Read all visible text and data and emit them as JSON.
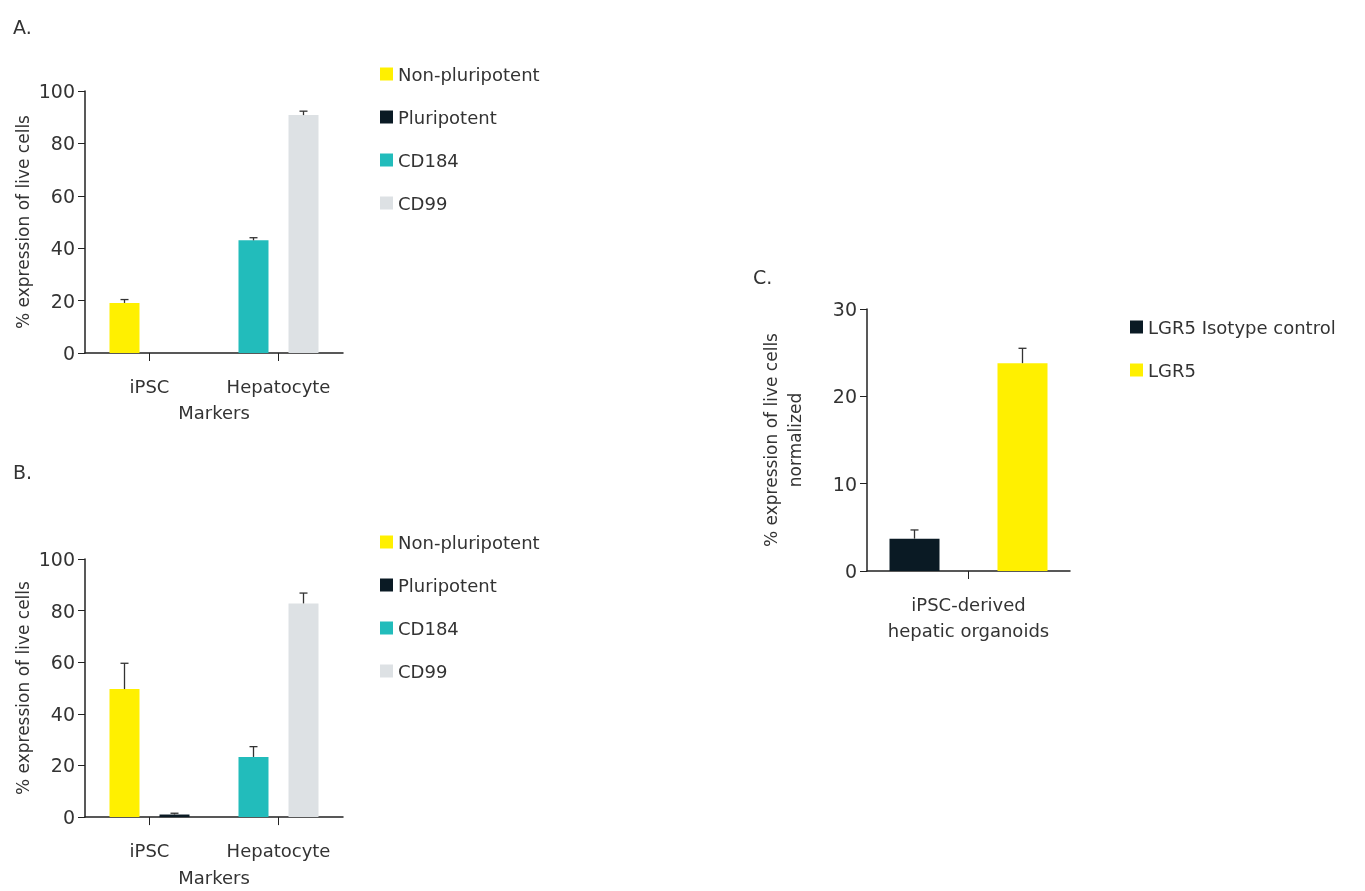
{
  "chart_data": [
    {
      "type": "bar",
      "title": "A.",
      "xlabel": "Markers",
      "ylabel": "% expression of live cells",
      "categories": [
        "iPSC",
        "Hepatocyte"
      ],
      "ylim": [
        0,
        100
      ],
      "yticks": [
        0,
        20,
        40,
        60,
        80,
        100
      ],
      "grid": false,
      "legend": "right",
      "series": [
        {
          "name": "Non-pluripotent",
          "color": "#fff000",
          "values": [
            19.1,
            null
          ],
          "errors": [
            [
              19.1,
              20.4
            ],
            null
          ]
        },
        {
          "name": "Pluripotent",
          "color": "#0a1a24",
          "values": [
            0,
            null
          ],
          "errors": [
            null,
            null
          ]
        },
        {
          "name": "CD184",
          "color": "#22bcbb",
          "values": [
            null,
            43.0
          ],
          "errors": [
            null,
            [
              43.0,
              44.0
            ]
          ]
        },
        {
          "name": "CD99",
          "color": "#dde1e4",
          "values": [
            null,
            90.8
          ],
          "errors": [
            null,
            [
              90.8,
              92.3
            ]
          ]
        }
      ]
    },
    {
      "type": "bar",
      "title": "B.",
      "xlabel": "Markers",
      "ylabel": "% expression of live cells",
      "categories": [
        "iPSC",
        "Hepatocyte"
      ],
      "ylim": [
        0,
        100
      ],
      "yticks": [
        0,
        20,
        40,
        60,
        80,
        100
      ],
      "grid": false,
      "legend": "right",
      "series": [
        {
          "name": "Non-pluripotent",
          "color": "#fff000",
          "values": [
            49.6,
            null
          ],
          "errors": [
            [
              49.6,
              59.6
            ],
            null
          ]
        },
        {
          "name": "Pluripotent",
          "color": "#0a1a24",
          "values": [
            1.0,
            null
          ],
          "errors": [
            [
              1.0,
              1.5
            ],
            null
          ]
        },
        {
          "name": "CD184",
          "color": "#22bcbb",
          "values": [
            null,
            23.3
          ],
          "errors": [
            null,
            [
              23.3,
              27.3
            ]
          ]
        },
        {
          "name": "CD99",
          "color": "#dde1e4",
          "values": [
            null,
            82.8
          ],
          "errors": [
            null,
            [
              82.8,
              86.8
            ]
          ]
        }
      ]
    },
    {
      "type": "bar",
      "title": "C.",
      "ylabel": "% expression of live cells\nnormalized",
      "categories": [
        "iPSC-derived\nhepatic organoids"
      ],
      "ylim": [
        0,
        30
      ],
      "yticks": [
        0,
        10,
        20,
        30
      ],
      "grid": false,
      "legend": "right",
      "series": [
        {
          "name": "LGR5 Isotype control",
          "color": "#0a1a24",
          "values": [
            3.7
          ],
          "errors": [
            [
              3.7,
              4.7
            ]
          ]
        },
        {
          "name": "LGR5",
          "color": "#fff000",
          "values": [
            23.8
          ],
          "errors": [
            [
              23.8,
              25.5
            ]
          ]
        }
      ]
    }
  ]
}
